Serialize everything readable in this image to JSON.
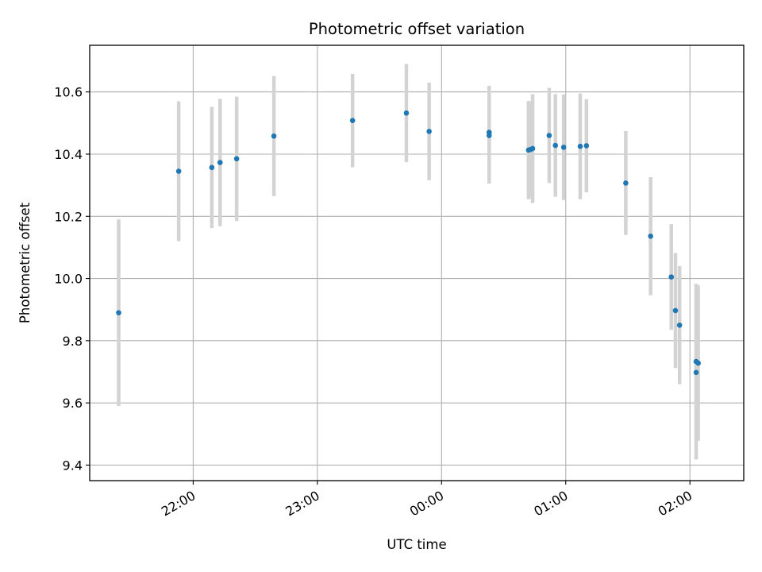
{
  "chart_data": {
    "type": "scatter",
    "title": "Photometric offset variation",
    "xlabel": "UTC time",
    "ylabel": "Photometric offset",
    "grid": true,
    "legend": "none",
    "x_axis": {
      "kind": "time",
      "range": [
        "21:10",
        "02:26"
      ],
      "ticks": [
        "22:00",
        "23:00",
        "00:00",
        "01:00",
        "02:00"
      ]
    },
    "y_axis": {
      "range": [
        9.35,
        10.75
      ],
      "ticks": [
        "9.4",
        "9.6",
        "9.8",
        "10.0",
        "10.2",
        "10.4",
        "10.6"
      ]
    },
    "colors": {
      "point": "#1f77b4",
      "errorbar": "#d3d3d3",
      "grid": "#b0b0b0"
    },
    "points": [
      {
        "time": "21:24",
        "y": 9.89,
        "err": 0.3
      },
      {
        "time": "21:53",
        "y": 10.345,
        "err": 0.225
      },
      {
        "time": "22:09",
        "y": 10.357,
        "err": 0.195
      },
      {
        "time": "22:13",
        "y": 10.373,
        "err": 0.205
      },
      {
        "time": "22:21",
        "y": 10.385,
        "err": 0.2
      },
      {
        "time": "22:39",
        "y": 10.458,
        "err": 0.193
      },
      {
        "time": "23:17",
        "y": 10.508,
        "err": 0.15
      },
      {
        "time": "23:43",
        "y": 10.532,
        "err": 0.158
      },
      {
        "time": "23:54",
        "y": 10.473,
        "err": 0.157
      },
      {
        "time": "00:23",
        "y": 10.46,
        "err": 0.155
      },
      {
        "time": "00:23",
        "y": 10.47,
        "err": 0.15
      },
      {
        "time": "00:42",
        "y": 10.413,
        "err": 0.158
      },
      {
        "time": "00:43",
        "y": 10.415,
        "err": 0.155
      },
      {
        "time": "00:44",
        "y": 10.418,
        "err": 0.175
      },
      {
        "time": "00:52",
        "y": 10.46,
        "err": 0.153
      },
      {
        "time": "00:55",
        "y": 10.428,
        "err": 0.165
      },
      {
        "time": "00:59",
        "y": 10.422,
        "err": 0.17
      },
      {
        "time": "01:07",
        "y": 10.425,
        "err": 0.17
      },
      {
        "time": "01:10",
        "y": 10.427,
        "err": 0.15
      },
      {
        "time": "01:29",
        "y": 10.307,
        "err": 0.167
      },
      {
        "time": "01:41",
        "y": 10.136,
        "err": 0.19
      },
      {
        "time": "01:51",
        "y": 10.005,
        "err": 0.17
      },
      {
        "time": "01:53",
        "y": 9.897,
        "err": 0.185
      },
      {
        "time": "01:55",
        "y": 9.85,
        "err": 0.19
      },
      {
        "time": "02:03",
        "y": 9.733,
        "err": 0.25
      },
      {
        "time": "02:03",
        "y": 9.698,
        "err": 0.28
      },
      {
        "time": "02:04",
        "y": 9.728,
        "err": 0.25
      }
    ]
  }
}
